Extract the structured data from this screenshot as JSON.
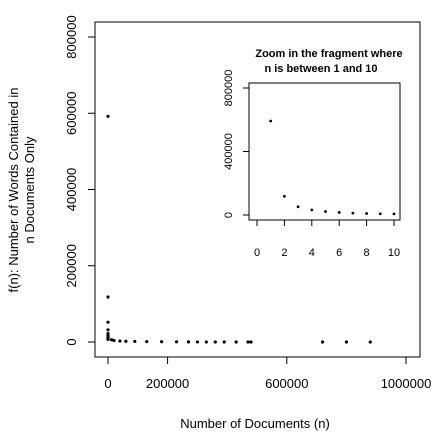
{
  "chart_data": [
    {
      "type": "scatter",
      "title": "",
      "xlabel": "Number of Documents (n)",
      "ylabel_lines": [
        "f(n): Number of Words Contained in",
        "n Documents Only"
      ],
      "xlim": [
        0,
        1000000
      ],
      "ylim": [
        0,
        800000
      ],
      "x_ticks": [
        0,
        200000,
        600000,
        1000000
      ],
      "x_tick_labels": [
        "0",
        "200000",
        "600000",
        "1000000"
      ],
      "y_ticks": [
        0,
        200000,
        400000,
        600000,
        800000
      ],
      "y_tick_labels": [
        "0",
        "200000",
        "400000",
        "600000",
        "800000"
      ],
      "grid": false,
      "points": [
        [
          1,
          592000
        ],
        [
          2,
          118000
        ],
        [
          3,
          52000
        ],
        [
          4,
          32000
        ],
        [
          5,
          22000
        ],
        [
          6,
          16000
        ],
        [
          7,
          12000
        ],
        [
          8,
          9500
        ],
        [
          9,
          8000
        ],
        [
          10,
          7000
        ],
        [
          12000,
          6000
        ],
        [
          20000,
          4000
        ],
        [
          40000,
          2500
        ],
        [
          60000,
          2000
        ],
        [
          90000,
          1500
        ],
        [
          130000,
          1000
        ],
        [
          180000,
          800
        ],
        [
          230000,
          500
        ],
        [
          270000,
          300
        ],
        [
          300000,
          200
        ],
        [
          330000,
          150
        ],
        [
          360000,
          100
        ],
        [
          390000,
          50
        ],
        [
          430000,
          30
        ],
        [
          470000,
          20
        ],
        [
          480000,
          10
        ],
        [
          720000,
          5
        ],
        [
          800000,
          3
        ],
        [
          880000,
          2
        ]
      ]
    },
    {
      "type": "scatter",
      "title_lines": [
        "Zoom in the fragment  where",
        "n is between 1 and 10"
      ],
      "xlabel": "",
      "ylabel": "",
      "xlim": [
        0,
        10
      ],
      "ylim": [
        0,
        800000
      ],
      "x_ticks": [
        0,
        2,
        4,
        6,
        8,
        10
      ],
      "x_tick_labels": [
        "0",
        "2",
        "4",
        "6",
        "8",
        "10"
      ],
      "y_ticks": [
        0,
        400000,
        800000
      ],
      "y_tick_labels": [
        "0",
        "400000",
        "800000"
      ],
      "grid": false,
      "points": [
        [
          1,
          592000
        ],
        [
          2,
          118000
        ],
        [
          3,
          52000
        ],
        [
          4,
          32000
        ],
        [
          5,
          22000
        ],
        [
          6,
          16000
        ],
        [
          7,
          12000
        ],
        [
          8,
          9500
        ],
        [
          9,
          8000
        ],
        [
          10,
          7000
        ]
      ]
    }
  ]
}
